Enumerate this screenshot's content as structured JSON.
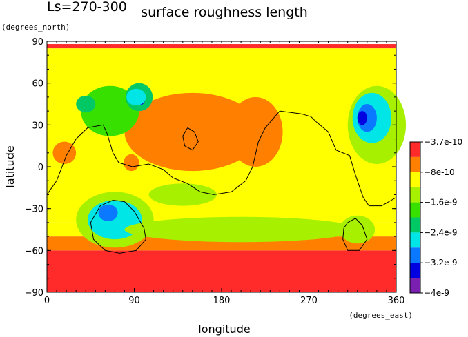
{
  "chart_data": {
    "type": "heatmap",
    "title": "surface roughness length",
    "subtitle": "Ls=270-300",
    "xlabel": "longitude",
    "ylabel": "latitude",
    "x_unit": "(degrees_east)",
    "y_unit": "(degrees_north)",
    "xlim": [
      0,
      360
    ],
    "ylim": [
      -90,
      90
    ],
    "x_ticks": [
      0,
      90,
      180,
      270,
      360
    ],
    "x_tick_labels": [
      "0",
      "90",
      "180",
      "270",
      "360"
    ],
    "y_ticks": [
      90,
      60,
      30,
      0,
      -30,
      -60,
      -90
    ],
    "y_tick_labels": [
      "90",
      "60",
      "30",
      "0",
      "−30",
      "−60",
      "−90"
    ],
    "grid": false,
    "colorbar": {
      "position": "right",
      "levels": [
        {
          "label": "−3.7e-10",
          "color": "#ff2a2a"
        },
        {
          "label": "−8e-10",
          "color": "#ff8000"
        },
        {
          "label": "−1.6e-9",
          "color": "#ffff00"
        },
        {
          "label": "−2.4e-9",
          "color": "#38e000"
        },
        {
          "label": "−3.2e-9",
          "color": "#00e5e5"
        },
        {
          "label": "−4e-9",
          "color": "#0000e0"
        }
      ],
      "colors": [
        "#ff2a2a",
        "#ff8000",
        "#ffff00",
        "#a6f000",
        "#38e000",
        "#00c864",
        "#00e5e5",
        "#0a78ff",
        "#0000e0",
        "#7a1fb0"
      ]
    },
    "field_bands": [
      {
        "lat": [
          -90,
          -85
        ],
        "class": 0
      },
      {
        "lat": [
          -85,
          -60
        ],
        "class": 0
      },
      {
        "lat": [
          -60,
          -50
        ],
        "class": 1
      },
      {
        "lat": [
          -50,
          -40
        ],
        "class": 2
      },
      {
        "lat": [
          -40,
          85
        ],
        "class": 2
      },
      {
        "lat": [
          85,
          88
        ],
        "class": 0
      }
    ],
    "features": [
      {
        "lon": 150,
        "lat": 25,
        "rx": 70,
        "ry": 28,
        "class": 1
      },
      {
        "lon": 215,
        "lat": 25,
        "rx": 28,
        "ry": 25,
        "class": 1
      },
      {
        "lon": 18,
        "lat": 10,
        "rx": 12,
        "ry": 8,
        "class": 1
      },
      {
        "lon": 87,
        "lat": 3,
        "rx": 8,
        "ry": 6,
        "class": 1
      },
      {
        "lon": 65,
        "lat": 40,
        "rx": 30,
        "ry": 18,
        "class": 4
      },
      {
        "lon": 95,
        "lat": 50,
        "rx": 14,
        "ry": 10,
        "class": 5
      },
      {
        "lon": 95,
        "lat": 48,
        "rx": 6,
        "ry": 4,
        "class": 8
      },
      {
        "lon": 40,
        "lat": 45,
        "rx": 10,
        "ry": 6,
        "class": 5
      },
      {
        "lon": 92,
        "lat": 50,
        "rx": 10,
        "ry": 6,
        "class": 6
      },
      {
        "lon": 340,
        "lat": 30,
        "rx": 30,
        "ry": 28,
        "class": 3
      },
      {
        "lon": 335,
        "lat": 35,
        "rx": 20,
        "ry": 18,
        "class": 6
      },
      {
        "lon": 330,
        "lat": 35,
        "rx": 10,
        "ry": 10,
        "class": 7
      },
      {
        "lon": 325,
        "lat": 35,
        "rx": 5,
        "ry": 5,
        "class": 8
      },
      {
        "lon": 70,
        "lat": -38,
        "rx": 40,
        "ry": 20,
        "class": 3
      },
      {
        "lon": 70,
        "lat": -38,
        "rx": 28,
        "ry": 14,
        "class": 6
      },
      {
        "lon": 63,
        "lat": -33,
        "rx": 10,
        "ry": 6,
        "class": 7
      },
      {
        "lon": 200,
        "lat": -45,
        "rx": 120,
        "ry": 9,
        "class": 3
      },
      {
        "lon": 320,
        "lat": -45,
        "rx": 18,
        "ry": 10,
        "class": 3
      },
      {
        "lon": 140,
        "lat": -20,
        "rx": 35,
        "ry": 8,
        "class": 3
      }
    ],
    "contours": [
      [
        [
          0,
          -20
        ],
        [
          10,
          -10
        ],
        [
          20,
          8
        ],
        [
          30,
          20
        ],
        [
          42,
          28
        ],
        [
          58,
          30
        ],
        [
          62,
          24
        ],
        [
          68,
          10
        ],
        [
          74,
          3
        ],
        [
          88,
          0
        ],
        [
          105,
          2
        ],
        [
          120,
          -2
        ],
        [
          130,
          -8
        ],
        [
          145,
          -12
        ],
        [
          158,
          -18
        ],
        [
          172,
          -20
        ],
        [
          190,
          -18
        ],
        [
          205,
          -10
        ],
        [
          212,
          0
        ],
        [
          218,
          18
        ],
        [
          225,
          28
        ],
        [
          240,
          40
        ],
        [
          262,
          38
        ],
        [
          272,
          36
        ],
        [
          278,
          32
        ],
        [
          290,
          25
        ],
        [
          298,
          12
        ],
        [
          312,
          8
        ],
        [
          318,
          -6
        ],
        [
          326,
          -22
        ],
        [
          332,
          -28
        ],
        [
          345,
          -28
        ],
        [
          360,
          -22
        ]
      ],
      [
        [
          80,
          -25
        ],
        [
          90,
          -32
        ],
        [
          100,
          -44
        ],
        [
          102,
          -52
        ],
        [
          92,
          -60
        ],
        [
          75,
          -62
        ],
        [
          60,
          -60
        ],
        [
          48,
          -52
        ],
        [
          45,
          -40
        ],
        [
          55,
          -28
        ],
        [
          68,
          -24
        ],
        [
          80,
          -25
        ]
      ],
      [
        [
          310,
          -40
        ],
        [
          318,
          -37
        ],
        [
          325,
          -42
        ],
        [
          330,
          -52
        ],
        [
          322,
          -60
        ],
        [
          310,
          -60
        ],
        [
          305,
          -52
        ],
        [
          306,
          -44
        ],
        [
          310,
          -40
        ]
      ],
      [
        [
          145,
          28
        ],
        [
          152,
          25
        ],
        [
          156,
          18
        ],
        [
          150,
          12
        ],
        [
          142,
          15
        ],
        [
          140,
          22
        ],
        [
          145,
          28
        ]
      ]
    ]
  }
}
